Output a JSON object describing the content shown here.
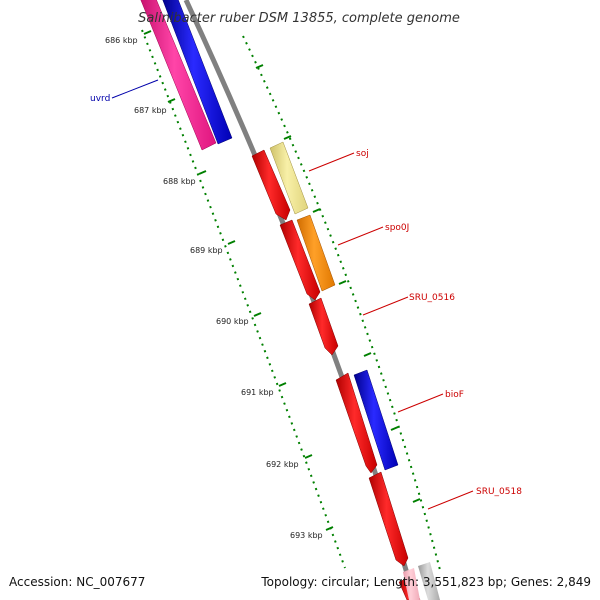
{
  "title": "Salinibacter ruber DSM 13855, complete genome",
  "footer": {
    "accession": "Accession: NC_007677",
    "summary": "Topology: circular; Length: 3,551,823 bp; Genes: 2,849"
  },
  "ruler_labels": [
    "686 kbp",
    "687 kbp",
    "688 kbp",
    "689 kbp",
    "690 kbp",
    "691 kbp",
    "692 kbp",
    "693 kbp"
  ],
  "genes": [
    {
      "name": "uvrd",
      "color": "#0000aa"
    },
    {
      "name": "soj",
      "color": "#cc0000"
    },
    {
      "name": "spo0J",
      "color": "#cc0000"
    },
    {
      "name": "SRU_0516",
      "color": "#cc0000"
    },
    {
      "name": "bioF",
      "color": "#cc0000"
    },
    {
      "name": "SRU_0518",
      "color": "#cc0000"
    }
  ],
  "colors": {
    "cds_red": "#ff0000",
    "cds_blue": "#0000ff",
    "cds_pink": "#ff1493",
    "cds_khaki": "#f0e68c",
    "cds_orange": "#ff8c00",
    "backbone": "#808080",
    "ticks": "#008000"
  }
}
